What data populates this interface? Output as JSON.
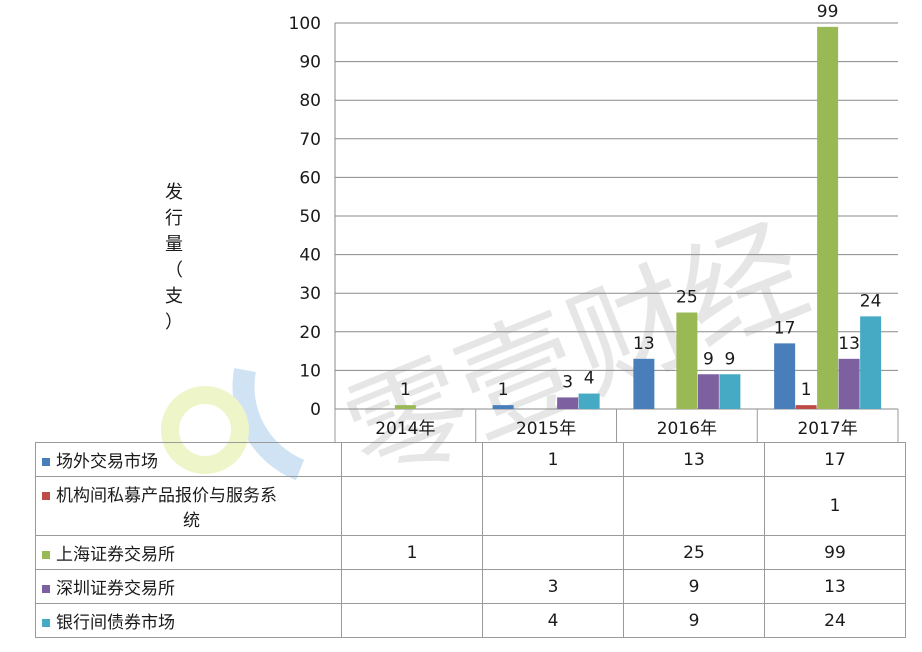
{
  "chart_data": {
    "type": "bar",
    "ylabel": "发行量（支）",
    "ylim": [
      0,
      100
    ],
    "yticks": [
      0,
      10,
      20,
      30,
      40,
      50,
      60,
      70,
      80,
      90,
      100
    ],
    "categories": [
      "2014年",
      "2015年",
      "2016年",
      "2017年"
    ],
    "series": [
      {
        "name": "场外交易市场",
        "color": "#4a7ebb",
        "values": [
          null,
          1,
          13,
          17
        ]
      },
      {
        "name": "机构间私募产品报价与服务系统",
        "color": "#be4b48",
        "values": [
          null,
          null,
          null,
          1
        ]
      },
      {
        "name": "上海证券交易所",
        "color": "#98b954",
        "values": [
          1,
          null,
          25,
          99
        ]
      },
      {
        "name": "深圳证券交易所",
        "color": "#7d60a0",
        "values": [
          null,
          3,
          9,
          13
        ]
      },
      {
        "name": "银行间债券市场",
        "color": "#46aac5",
        "values": [
          null,
          4,
          9,
          24
        ]
      }
    ],
    "legend": "data-table",
    "grid": true
  },
  "watermark": "零壹财经",
  "ylabel_chars": [
    "发",
    "行",
    "量",
    "（",
    "支",
    "）"
  ],
  "table": {
    "rows": [
      {
        "label": "场外交易市场",
        "color": "#4a7ebb",
        "cells": [
          "",
          "1",
          "13",
          "17"
        ]
      },
      {
        "label_line1": "机构间私募产品报价与服务系",
        "label_line2": "统",
        "color": "#be4b48",
        "cells": [
          "",
          "",
          "",
          "1"
        ]
      },
      {
        "label": "上海证券交易所",
        "color": "#98b954",
        "cells": [
          "1",
          "",
          "25",
          "99"
        ]
      },
      {
        "label": "深圳证券交易所",
        "color": "#7d60a0",
        "cells": [
          "",
          "3",
          "9",
          "13"
        ]
      },
      {
        "label": "银行间债券市场",
        "color": "#46aac5",
        "cells": [
          "",
          "4",
          "9",
          "24"
        ]
      }
    ]
  }
}
